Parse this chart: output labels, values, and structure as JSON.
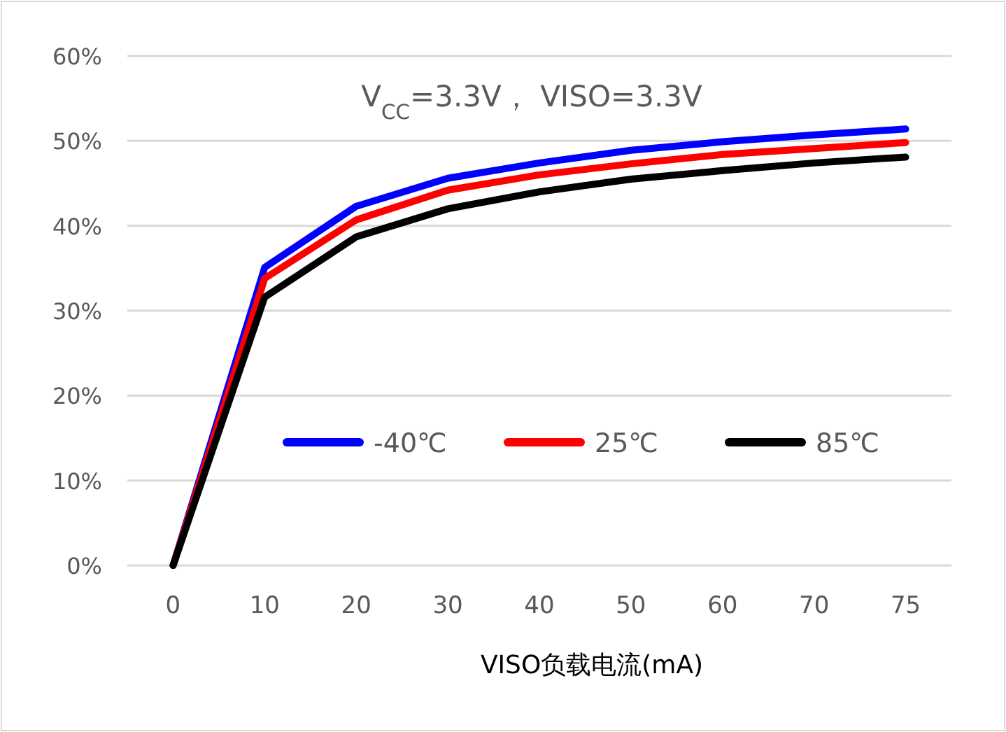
{
  "chart_data": {
    "type": "line",
    "title": "V$_{CC}$=3.3V，  VISO=3.3V",
    "xlabel": "VISO负载电流(mA)",
    "categories": [
      "0",
      "10",
      "20",
      "30",
      "40",
      "50",
      "60",
      "70",
      "75"
    ],
    "series": [
      {
        "name": "-40℃",
        "color": "#0000ff",
        "values": [
          0,
          35.1,
          42.3,
          45.6,
          47.4,
          48.9,
          49.9,
          50.7,
          51.4
        ]
      },
      {
        "name": "25℃",
        "color": "#ff0000",
        "values": [
          0,
          33.8,
          40.7,
          44.2,
          46.0,
          47.3,
          48.4,
          49.1,
          49.8
        ]
      },
      {
        "name": "85℃",
        "color": "#000000",
        "values": [
          0,
          31.6,
          38.7,
          42.0,
          44.0,
          45.5,
          46.5,
          47.4,
          48.1
        ]
      }
    ],
    "ylim": [
      0,
      60
    ],
    "yticks": [
      {
        "value": 0,
        "label": "0%"
      },
      {
        "value": 10,
        "label": "10%"
      },
      {
        "value": 20,
        "label": "20%"
      },
      {
        "value": 30,
        "label": "30%"
      },
      {
        "value": 40,
        "label": "40%"
      },
      {
        "value": 50,
        "label": "50%"
      },
      {
        "value": 60,
        "label": "60%"
      }
    ],
    "grid": "y",
    "legend": "bottom",
    "marker": "none",
    "line_style": "solid"
  }
}
